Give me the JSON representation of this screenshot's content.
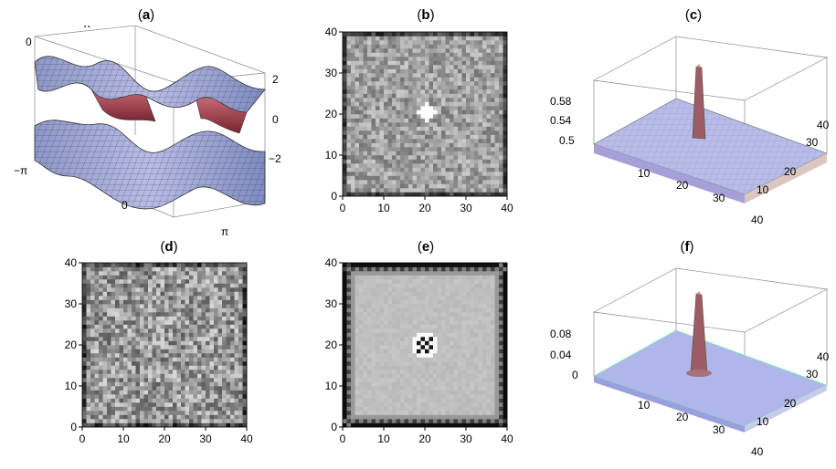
{
  "panels": {
    "a": {
      "label_open": "(",
      "label_letter": "a",
      "label_close": ")",
      "axis_labels": [
        "0",
        "π",
        "−π",
        "0",
        "π",
        "2",
        "0",
        "−2"
      ]
    },
    "b": {
      "label_open": "(",
      "label_letter": "b",
      "label_close": ")"
    },
    "c": {
      "label_open": "(",
      "label_letter": "c",
      "label_close": ")",
      "z_ticks": [
        "0.58",
        "0.54",
        "0.5"
      ],
      "front_ticks": [
        "10",
        "20",
        "30",
        "40"
      ],
      "side_ticks": [
        "10",
        "20",
        "30",
        "40"
      ]
    },
    "d": {
      "label_open": "(",
      "label_letter": "d",
      "label_close": ")"
    },
    "e": {
      "label_open": "(",
      "label_letter": "e",
      "label_close": ")"
    },
    "f": {
      "label_open": "(",
      "label_letter": "f",
      "label_close": ")",
      "z_ticks": [
        "0.08",
        "0.04",
        "0"
      ],
      "front_ticks": [
        "10",
        "20",
        "30",
        "40"
      ],
      "side_ticks": [
        "10",
        "20",
        "30",
        "40"
      ]
    }
  },
  "chart_data": [
    {
      "type": "heatmap",
      "panel": "b",
      "grid_size": 40,
      "feature": "bright plus-shaped spot near (20,20)",
      "x_ticks": [
        "0",
        "10",
        "20",
        "30",
        "40"
      ],
      "y_ticks": [
        "0",
        "10",
        "20",
        "30",
        "40"
      ],
      "xlim": [
        0,
        40
      ],
      "ylim": [
        0,
        40
      ]
    },
    {
      "type": "heatmap",
      "panel": "d",
      "grid_size": 40,
      "feature": "random noise",
      "x_ticks": [
        "0",
        "10",
        "20",
        "30",
        "40"
      ],
      "y_ticks": [
        "0",
        "10",
        "20",
        "30",
        "40"
      ],
      "xlim": [
        0,
        40
      ],
      "ylim": [
        0,
        40
      ]
    },
    {
      "type": "heatmap",
      "panel": "e",
      "grid_size": 40,
      "feature": "bright ring spot near (20,20)",
      "x_ticks": [
        "0",
        "10",
        "20",
        "30",
        "40"
      ],
      "y_ticks": [
        "0",
        "10",
        "20",
        "30",
        "40"
      ],
      "xlim": [
        0,
        40
      ],
      "ylim": [
        0,
        40
      ]
    }
  ]
}
